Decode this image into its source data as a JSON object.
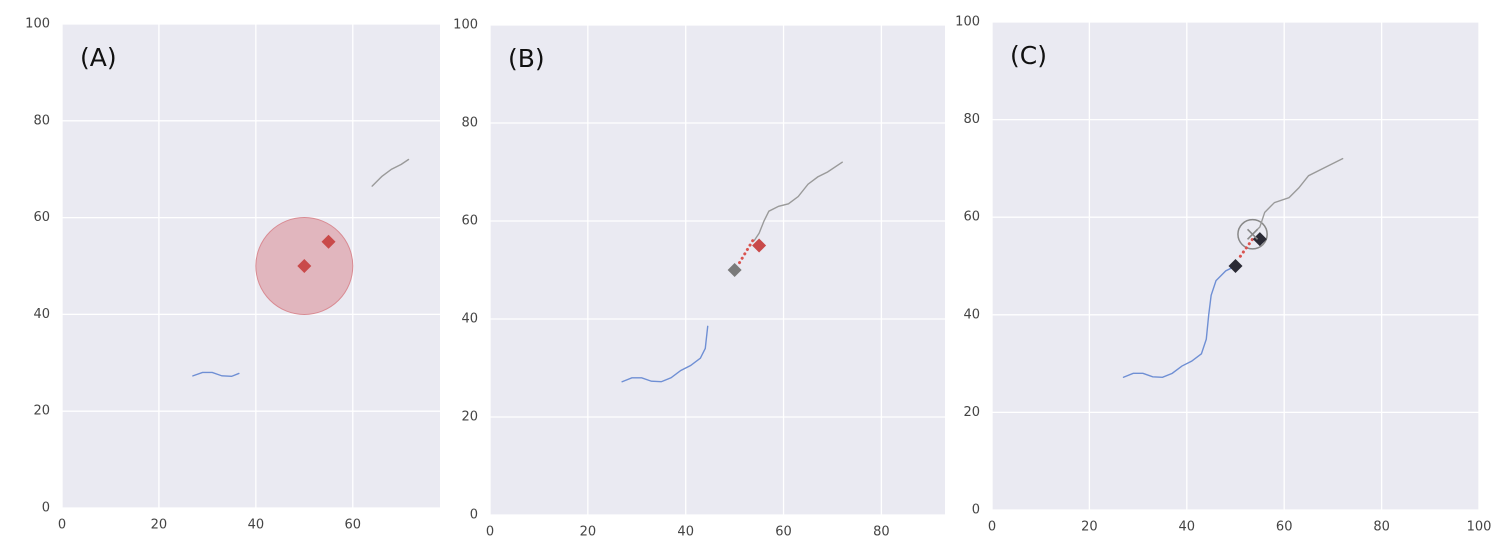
{
  "chart_data": [
    {
      "type": "line",
      "label": "(A)",
      "xlim": [
        0,
        78
      ],
      "ylim": [
        0,
        100
      ],
      "xticks": [
        0,
        20,
        40,
        60
      ],
      "yticks": [
        0,
        20,
        40,
        60,
        80,
        100
      ],
      "grid": true,
      "series": [
        {
          "color": "#6f8fd4",
          "x": [
            27,
            29,
            31,
            33,
            35,
            36.5
          ],
          "values": [
            27.3,
            28,
            28,
            27.3,
            27.2,
            27.8
          ]
        },
        {
          "color": "#9a9a9a",
          "x": [
            64,
            66,
            68,
            70,
            71.5
          ],
          "values": [
            66.5,
            68.5,
            70,
            71,
            72
          ]
        }
      ],
      "circles": [
        {
          "color": "#d98b93",
          "x": 50,
          "y": 50,
          "r": 10
        }
      ],
      "markers": [
        {
          "color": "#c94a4a",
          "shape": "diamond",
          "x": [
            50,
            55
          ],
          "values": [
            50,
            55
          ]
        }
      ]
    },
    {
      "type": "line",
      "label": "(B)",
      "xlim": [
        0,
        93
      ],
      "ylim": [
        0,
        100
      ],
      "xticks": [
        0,
        20,
        40,
        60,
        80
      ],
      "yticks": [
        0,
        20,
        40,
        60,
        80,
        100
      ],
      "grid": true,
      "series": [
        {
          "color": "#6f8fd4",
          "x": [
            27,
            29,
            31,
            33,
            35,
            37,
            39,
            41,
            43,
            44,
            44.5
          ],
          "values": [
            27.2,
            28,
            28,
            27.3,
            27.2,
            28,
            29.5,
            30.5,
            32,
            34,
            38.5
          ]
        },
        {
          "color": "#9a9a9a",
          "x": [
            54,
            55,
            56,
            57,
            59,
            61,
            63,
            65,
            67,
            69,
            72
          ],
          "values": [
            56,
            57.5,
            60,
            62,
            63,
            63.5,
            65,
            67.5,
            69,
            70,
            72
          ]
        },
        {
          "color": "#d9534f",
          "dash": "dotted",
          "x": [
            51,
            52.5,
            54
          ],
          "values": [
            51.5,
            54,
            56.5
          ]
        }
      ],
      "markers": [
        {
          "color": "#7a7a7a",
          "shape": "diamond",
          "x": [
            50
          ],
          "values": [
            50
          ]
        },
        {
          "color": "#c94a4a",
          "shape": "diamond",
          "x": [
            55
          ],
          "values": [
            55
          ]
        }
      ]
    },
    {
      "type": "line",
      "label": "(C)",
      "xlim": [
        0,
        100
      ],
      "ylim": [
        0,
        100
      ],
      "xticks": [
        0,
        20,
        40,
        60,
        80,
        100
      ],
      "yticks": [
        0,
        20,
        40,
        60,
        80,
        100
      ],
      "grid": true,
      "series": [
        {
          "color": "#6f8fd4",
          "x": [
            27,
            29,
            31,
            33,
            35,
            37,
            39,
            41,
            43,
            44,
            44.5,
            45,
            46,
            48,
            50
          ],
          "values": [
            27.2,
            28,
            28,
            27.3,
            27.2,
            28,
            29.5,
            30.5,
            32,
            35,
            40,
            44,
            47,
            49,
            50
          ]
        },
        {
          "color": "#9a9a9a",
          "x": [
            53.5,
            55,
            56,
            58,
            61,
            63,
            65,
            68,
            72
          ],
          "values": [
            56.5,
            58,
            61,
            63,
            64,
            66,
            68.5,
            70,
            72
          ]
        },
        {
          "color": "#d9534f",
          "dash": "dotted",
          "x": [
            51,
            53.5
          ],
          "values": [
            52,
            55.5
          ]
        }
      ],
      "circles": [
        {
          "color": "#888888",
          "x": 53.5,
          "y": 56.5,
          "r": 3
        }
      ],
      "markers": [
        {
          "color": "#2a2a35",
          "shape": "diamond",
          "x": [
            50,
            55
          ],
          "values": [
            50,
            55.5
          ]
        },
        {
          "color": "#888888",
          "shape": "x",
          "x": [
            53.5
          ],
          "values": [
            56.5
          ]
        }
      ]
    }
  ]
}
